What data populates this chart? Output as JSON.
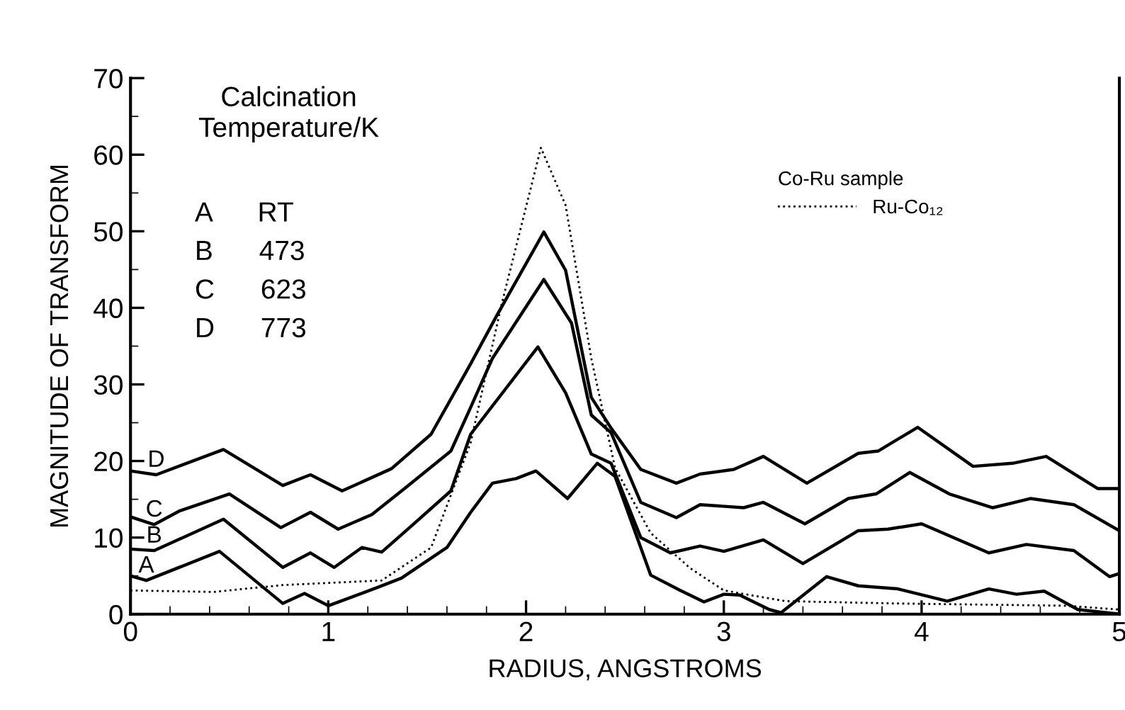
{
  "chart_data": {
    "type": "line",
    "xlabel": "RADIUS, ANGSTROMS",
    "ylabel": "MAGNITUDE OF TRANSFORM",
    "xlim": [
      0,
      5
    ],
    "xticks": [
      0,
      1,
      2,
      3,
      4,
      5
    ],
    "ylim": [
      0,
      70
    ],
    "yticks": [
      0,
      10,
      20,
      30,
      40,
      50,
      60,
      70
    ],
    "grid": false,
    "legend": "top right",
    "legend_title": "Co-Ru sample",
    "marker": "none",
    "annotations": [
      "Calcination\nTemperature/K",
      "A      RT",
      "B      473",
      "C      623",
      "D      773"
    ],
    "series": [
      {
        "name": "D",
        "color": "#000000",
        "line_style": "solid",
        "x": [
          0,
          0.13,
          0.47,
          0.77,
          0.91,
          1.07,
          1.32,
          1.52,
          1.72,
          1.85,
          2.09,
          2.2,
          2.33,
          2.43,
          2.58,
          2.76,
          2.88,
          3.05,
          3.2,
          3.42,
          3.68,
          3.78,
          3.98,
          4.26,
          4.46,
          4.63,
          4.89,
          5
        ],
        "values": [
          18.7,
          18.2,
          21.5,
          16.8,
          18.2,
          16.1,
          19,
          23.5,
          32.7,
          38.9,
          49.9,
          44.9,
          28.3,
          24.3,
          18.9,
          17.1,
          18.3,
          18.9,
          20.6,
          17.1,
          21,
          21.3,
          24.4,
          19.3,
          19.7,
          20.6,
          16.4,
          16.4
        ]
      },
      {
        "name": "C",
        "color": "#000000",
        "line_style": "solid",
        "x": [
          0,
          0.12,
          0.25,
          0.5,
          0.76,
          0.91,
          1.05,
          1.22,
          1.4,
          1.62,
          1.72,
          1.83,
          2.09,
          2.23,
          2.33,
          2.43,
          2.58,
          2.76,
          2.88,
          3.1,
          3.2,
          3.41,
          3.63,
          3.77,
          3.94,
          4.14,
          4.36,
          4.55,
          4.77,
          5
        ],
        "values": [
          12.7,
          11.7,
          13.5,
          15.7,
          11.3,
          13.3,
          11.1,
          13,
          16.7,
          21.3,
          27,
          33.4,
          43.7,
          38,
          26,
          23.7,
          14.6,
          12.6,
          14.3,
          13.9,
          14.6,
          11.8,
          15.1,
          15.7,
          18.5,
          15.7,
          13.9,
          15.1,
          14.3,
          10.9
        ]
      },
      {
        "name": "B",
        "color": "#000000",
        "line_style": "solid",
        "x": [
          0,
          0.12,
          0.47,
          0.77,
          0.91,
          1.03,
          1.17,
          1.27,
          1.42,
          1.62,
          1.72,
          2.06,
          2.2,
          2.33,
          2.43,
          2.58,
          2.73,
          2.88,
          3,
          3.2,
          3.4,
          3.68,
          3.83,
          4.0,
          4.34,
          4.53,
          4.77,
          4.95,
          5
        ],
        "values": [
          8.5,
          8.3,
          12.4,
          6.1,
          8,
          6.1,
          8.7,
          8.1,
          11.5,
          16.1,
          23.5,
          34.9,
          28.9,
          20.9,
          19.7,
          10,
          8,
          8.9,
          8.2,
          9.7,
          6.6,
          10.9,
          11.1,
          11.8,
          8,
          9.1,
          8.3,
          4.9,
          5.3
        ]
      },
      {
        "name": "A",
        "color": "#000000",
        "line_style": "solid",
        "x": [
          0,
          0.08,
          0.45,
          0.77,
          0.88,
          1.0,
          1.25,
          1.37,
          1.6,
          1.72,
          1.83,
          1.95,
          2.05,
          2.21,
          2.36,
          2.45,
          2.63,
          2.78,
          2.9,
          3.0,
          3.08,
          3.23,
          3.29,
          3.52,
          3.68,
          3.88,
          4.13,
          4.34,
          4.48,
          4.62,
          4.79,
          5
        ],
        "values": [
          5,
          4.4,
          8.2,
          1.4,
          2.7,
          1.1,
          3.5,
          4.7,
          8.7,
          13.3,
          17.1,
          17.7,
          18.7,
          15.1,
          19.7,
          18,
          5.1,
          3.1,
          1.6,
          2.6,
          2.5,
          0.6,
          0.2,
          4.9,
          3.7,
          3.3,
          1.7,
          3.3,
          2.6,
          3,
          0.6,
          0
        ]
      },
      {
        "name": "Ru-Co₁₂",
        "color": "#000000",
        "line_style": "dotted",
        "x": [
          0,
          0.42,
          0.77,
          1.27,
          1.52,
          1.72,
          1.875,
          2.075,
          2.2,
          2.33,
          2.45,
          2.63,
          2.83,
          3.0,
          3.31,
          3.86,
          4.73,
          5
        ],
        "values": [
          3.1,
          2.9,
          3.8,
          4.4,
          8.7,
          22.4,
          40.3,
          60.9,
          53.4,
          33.4,
          19.1,
          10.6,
          6,
          3.1,
          1.7,
          1.4,
          1.1,
          0.6
        ]
      }
    ]
  }
}
